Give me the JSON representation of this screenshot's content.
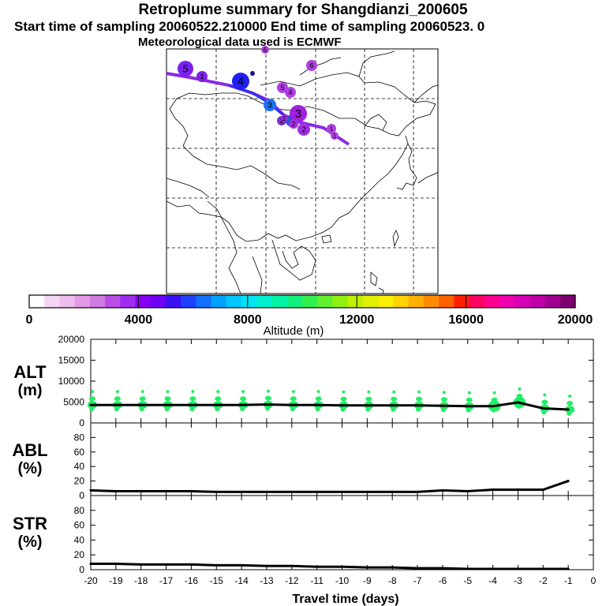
{
  "header": {
    "title": "Retroplume summary for Shangdianzi_200605",
    "subtitle": "Start time of sampling 20060522.210000     End time of sampling 20060523.    0",
    "met_note": "Meteorological data used is ECMWF"
  },
  "colorbar": {
    "label": "Altitude (m)",
    "ticks": [
      "0",
      "4000",
      "8000",
      "12000",
      "16000",
      "20000"
    ],
    "colors": [
      "#ffffff",
      "#f6d6f6",
      "#eebcee",
      "#e29ae6",
      "#d07ae2",
      "#b94de6",
      "#a12cf0",
      "#8800f4",
      "#6e00f6",
      "#3c10f4",
      "#2040ff",
      "#1070ff",
      "#00a0ff",
      "#00c8ff",
      "#00e4f4",
      "#00f0d0",
      "#00f4a8",
      "#10f080",
      "#30f050",
      "#60f030",
      "#90f010",
      "#c0f000",
      "#e0f000",
      "#f8f000",
      "#ffd400",
      "#ffb000",
      "#ff8c00",
      "#ff6000",
      "#ff2000",
      "#ff0060",
      "#ff0090",
      "#f000b0",
      "#d800b8",
      "#c000a8",
      "#a00090",
      "#800070"
    ]
  },
  "map": {
    "markers": [
      {
        "label": "5",
        "color": "#7a20f0"
      },
      {
        "label": "1",
        "color": "#8020e8"
      },
      {
        "label": "4",
        "color": "#2020f0"
      },
      {
        "label": "8",
        "color": "#3020c0"
      },
      {
        "label": "6",
        "color": "#b040e0"
      },
      {
        "label": "6",
        "color": "#b040e0"
      },
      {
        "label": "5",
        "color": "#b040e0"
      },
      {
        "label": "4",
        "color": "#b040e0"
      },
      {
        "label": "2",
        "color": "#8030d0"
      },
      {
        "label": "3",
        "color": "#1e70f0"
      },
      {
        "label": "7",
        "color": "#3050e0"
      },
      {
        "label": "3",
        "color": "#a020e0"
      },
      {
        "label": "2",
        "color": "#a030e0"
      },
      {
        "label": "2",
        "color": "#a030e0"
      },
      {
        "label": "1",
        "color": "#b040e0"
      },
      {
        "label": "1",
        "color": "#b040e0"
      },
      {
        "label": "2",
        "color": "#a030e0"
      }
    ]
  },
  "chart_data": [
    {
      "type": "line",
      "title": "",
      "ylabel": "ALT\n(m)",
      "ylabel_lines": [
        "ALT",
        "(m)"
      ],
      "xlabel": "Travel time (days)",
      "ylim": [
        0,
        20000
      ],
      "yticks": [
        "0",
        "5000",
        "10000",
        "15000",
        "20000"
      ],
      "x": [
        -20,
        -19,
        -18,
        -17,
        -16,
        -15,
        -14,
        -13,
        -12,
        -11,
        -10,
        -9,
        -8,
        -7,
        -6,
        -5,
        -4,
        -3,
        -2,
        -1
      ],
      "series": [
        {
          "name": "mean altitude",
          "values": [
            4300,
            4300,
            4300,
            4300,
            4300,
            4300,
            4300,
            4400,
            4300,
            4300,
            4200,
            4200,
            4200,
            4200,
            4100,
            4000,
            4000,
            4900,
            3500,
            3200
          ]
        }
      ]
    },
    {
      "type": "line",
      "ylabel": "ABL\n(%)",
      "ylabel_lines": [
        "ABL",
        "(%)"
      ],
      "ylim": [
        0,
        100
      ],
      "yticks": [
        "0",
        "20",
        "40",
        "60",
        "80"
      ],
      "x": [
        -20,
        -19,
        -18,
        -17,
        -16,
        -15,
        -14,
        -13,
        -12,
        -11,
        -10,
        -9,
        -8,
        -7,
        -6,
        -5,
        -4,
        -3,
        -2,
        -1
      ],
      "series": [
        {
          "name": "ABL fraction",
          "values": [
            7,
            6,
            6,
            6,
            6,
            5,
            5,
            5,
            5,
            5,
            5,
            5,
            5,
            5,
            7,
            6,
            8,
            8,
            8,
            20
          ]
        }
      ]
    },
    {
      "type": "line",
      "ylabel": "STR\n(%)",
      "ylabel_lines": [
        "STR",
        "(%)"
      ],
      "ylim": [
        0,
        100
      ],
      "yticks": [
        "0",
        "20",
        "40",
        "60",
        "80"
      ],
      "xticks": [
        "-20",
        "-19",
        "-18",
        "-17",
        "-16",
        "-15",
        "-14",
        "-13",
        "-12",
        "-11",
        "-10",
        "-9",
        "-8",
        "-7",
        "-6",
        "-5",
        "-4",
        "-3",
        "-2",
        "-1",
        "0"
      ],
      "x": [
        -20,
        -19,
        -18,
        -17,
        -16,
        -15,
        -14,
        -13,
        -12,
        -11,
        -10,
        -9,
        -8,
        -7,
        -6,
        -5,
        -4,
        -3,
        -2,
        -1
      ],
      "series": [
        {
          "name": "stratospheric fraction",
          "values": [
            8,
            8,
            7,
            7,
            7,
            6,
            6,
            5,
            5,
            4,
            4,
            3,
            3,
            2,
            2,
            1,
            1,
            1,
            1,
            1
          ]
        }
      ]
    }
  ]
}
